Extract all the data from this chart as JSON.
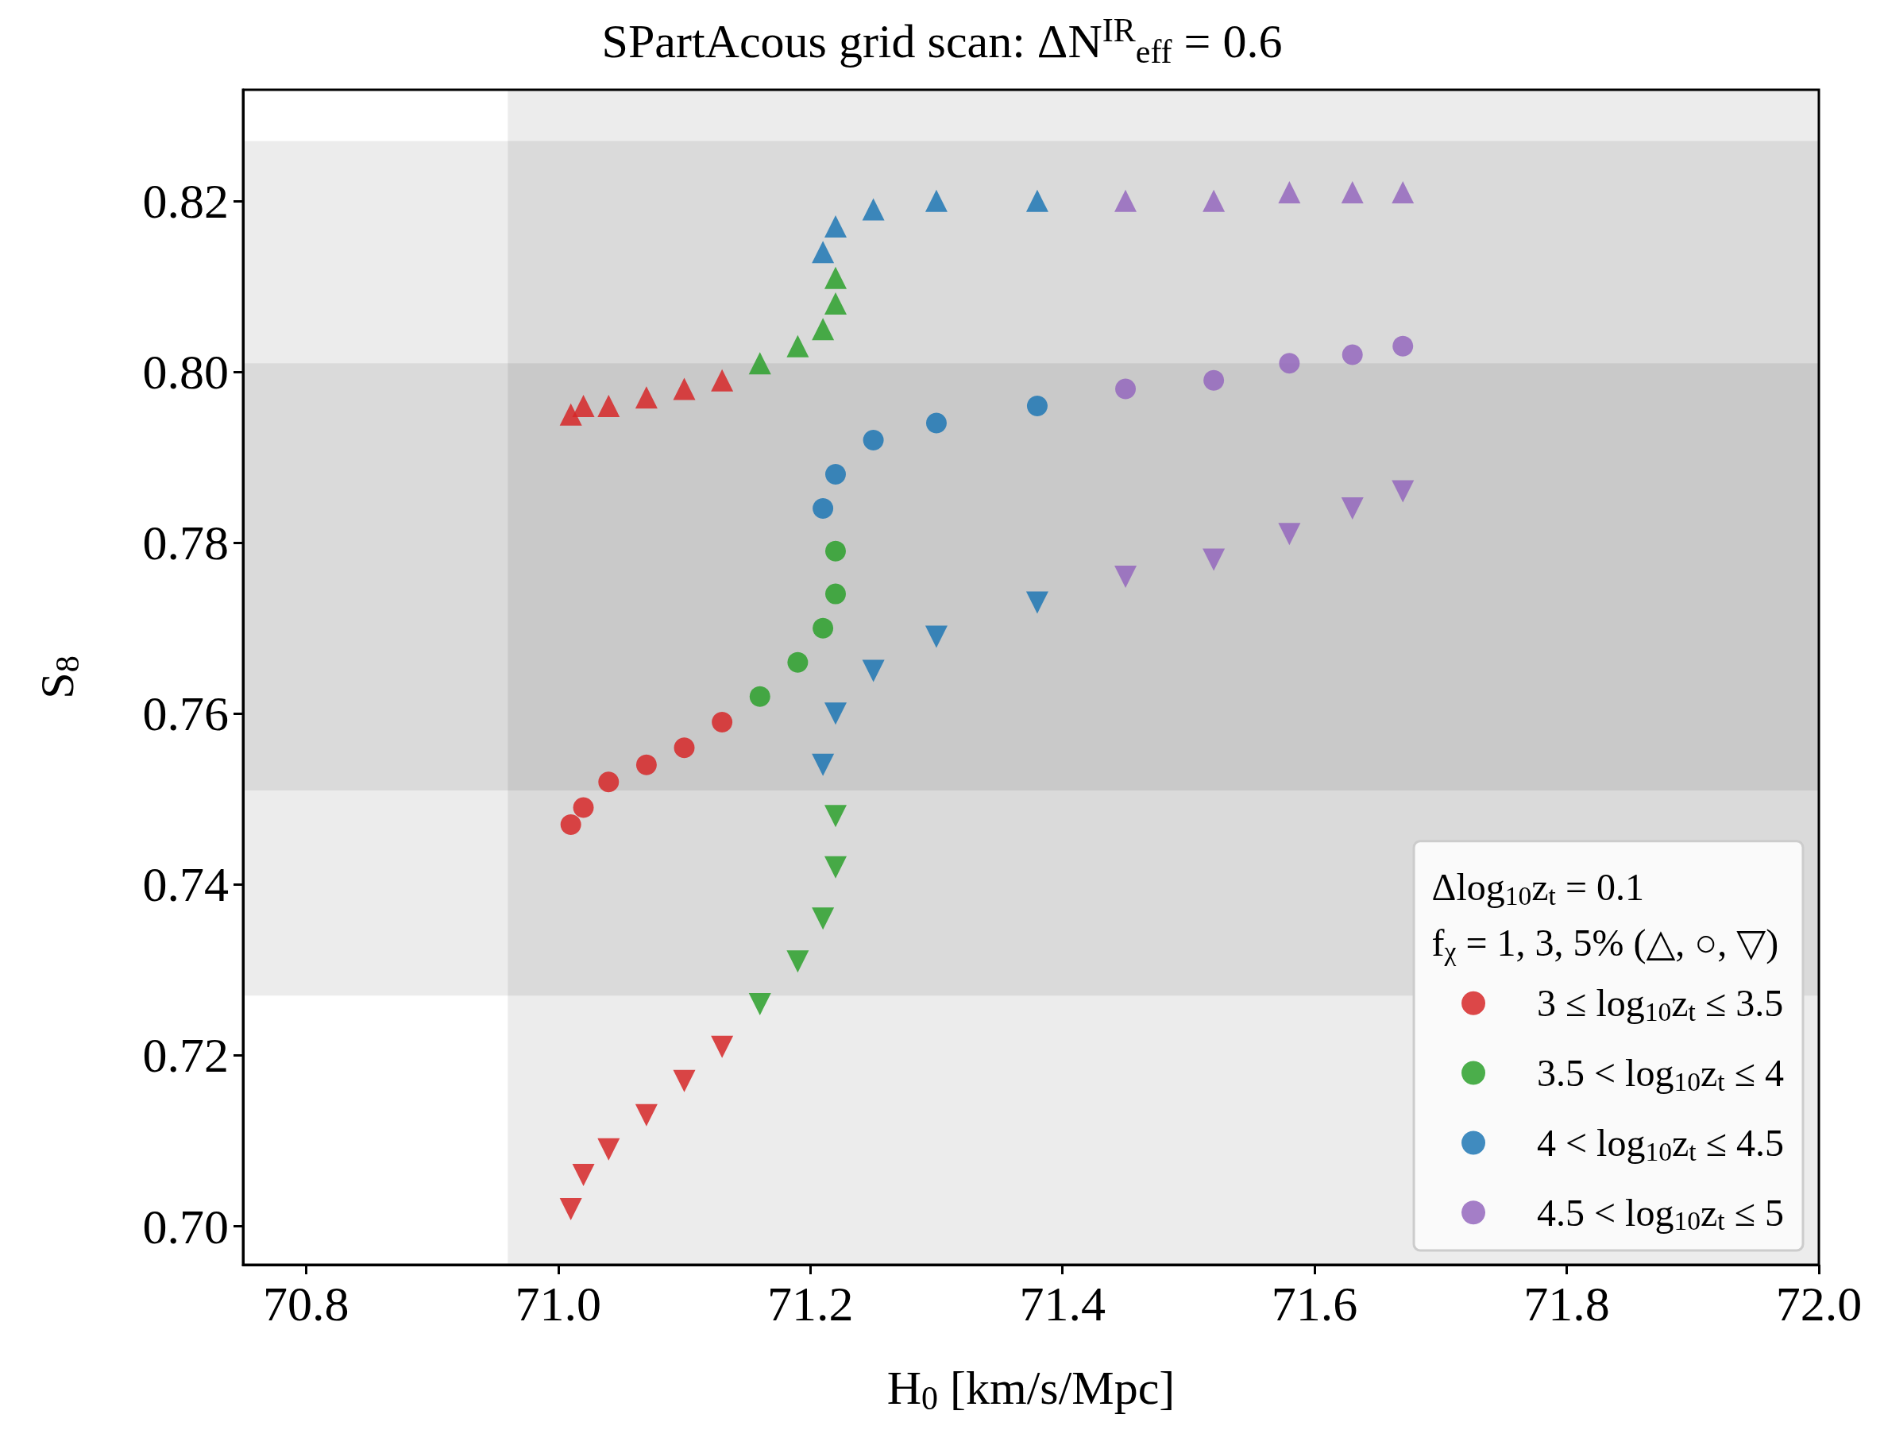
{
  "chart_data": {
    "type": "scatter",
    "title": "SPartAcous grid scan: ΔN$^{IR}$$_{eff}$ = 0.6",
    "xlabel": "H$_{0}$ [km/s/Mpc]",
    "ylabel": "S$_{8}$",
    "legend_title": "Δlog$_{10}$z$_{t}$ = 0.1\nf$_{χ}$ = 1, 3, 5% (△, ○, ▽)",
    "xlim": [
      70.75,
      72.0
    ],
    "ylim": [
      0.6955,
      0.833
    ],
    "xticks": [
      {
        "value": 70.8,
        "label": "70.8"
      },
      {
        "value": 71.0,
        "label": "71.0"
      },
      {
        "value": 71.2,
        "label": "71.2"
      },
      {
        "value": 71.4,
        "label": "71.4"
      },
      {
        "value": 71.6,
        "label": "71.6"
      },
      {
        "value": 71.8,
        "label": "71.8"
      },
      {
        "value": 72.0,
        "label": "72.0"
      }
    ],
    "yticks": [
      {
        "value": 0.7,
        "label": "0.70"
      },
      {
        "value": 0.72,
        "label": "0.72"
      },
      {
        "value": 0.74,
        "label": "0.74"
      },
      {
        "value": 0.76,
        "label": "0.76"
      },
      {
        "value": 0.78,
        "label": "0.78"
      },
      {
        "value": 0.8,
        "label": "0.80"
      },
      {
        "value": 0.82,
        "label": "0.82"
      }
    ],
    "grid": false,
    "legend": "bottom right",
    "bands": [
      {
        "axis": "x",
        "from": 70.96,
        "to": 72.0,
        "color": "#000000"
      },
      {
        "axis": "y",
        "from": 0.727,
        "to": 0.827,
        "color": "#000000"
      },
      {
        "axis": "y",
        "from": 0.751,
        "to": 0.801,
        "color": "#000000"
      }
    ],
    "series": [
      {
        "color": "#d62728",
        "marker": "triangle",
        "x": [
          71.01,
          71.02,
          71.04,
          71.07,
          71.1,
          71.13
        ],
        "values": [
          0.795,
          0.796,
          0.796,
          0.797,
          0.798,
          0.799
        ]
      },
      {
        "color": "#2ca02c",
        "marker": "triangle",
        "x": [
          71.16,
          71.19,
          71.21,
          71.22,
          71.22
        ],
        "values": [
          0.801,
          0.803,
          0.805,
          0.808,
          0.811
        ]
      },
      {
        "color": "#1f77b4",
        "marker": "triangle",
        "x": [
          71.21,
          71.22,
          71.25,
          71.3,
          71.38
        ],
        "values": [
          0.814,
          0.817,
          0.819,
          0.82,
          0.82
        ]
      },
      {
        "color": "#9467bd",
        "marker": "triangle",
        "x": [
          71.45,
          71.52,
          71.58,
          71.63,
          71.67
        ],
        "values": [
          0.82,
          0.82,
          0.821,
          0.821,
          0.821
        ]
      },
      {
        "name": "3 ≤ log$_{10}$z$_{t}$ ≤ 3.5",
        "color": "#d62728",
        "marker": "circle",
        "x": [
          71.01,
          71.02,
          71.04,
          71.07,
          71.1,
          71.13
        ],
        "values": [
          0.747,
          0.749,
          0.752,
          0.754,
          0.756,
          0.759
        ]
      },
      {
        "name": "3.5 < log$_{10}$z$_{t}$ ≤ 4",
        "color": "#2ca02c",
        "marker": "circle",
        "x": [
          71.16,
          71.19,
          71.21,
          71.22,
          71.22
        ],
        "values": [
          0.762,
          0.766,
          0.77,
          0.774,
          0.779
        ]
      },
      {
        "name": "4 < log$_{10}$z$_{t}$ ≤ 4.5",
        "color": "#1f77b4",
        "marker": "circle",
        "x": [
          71.21,
          71.22,
          71.25,
          71.3,
          71.38
        ],
        "values": [
          0.784,
          0.788,
          0.792,
          0.794,
          0.796
        ]
      },
      {
        "name": "4.5 < log$_{10}$z$_{t}$ ≤ 5",
        "color": "#9467bd",
        "marker": "circle",
        "x": [
          71.45,
          71.52,
          71.58,
          71.63,
          71.67
        ],
        "values": [
          0.798,
          0.799,
          0.801,
          0.802,
          0.803
        ]
      },
      {
        "color": "#d62728",
        "marker": "triangle-down",
        "x": [
          71.01,
          71.02,
          71.04,
          71.07,
          71.1,
          71.13
        ],
        "values": [
          0.702,
          0.706,
          0.709,
          0.713,
          0.717,
          0.721
        ]
      },
      {
        "color": "#2ca02c",
        "marker": "triangle-down",
        "x": [
          71.16,
          71.19,
          71.21,
          71.22,
          71.22
        ],
        "values": [
          0.726,
          0.731,
          0.736,
          0.742,
          0.748
        ]
      },
      {
        "color": "#1f77b4",
        "marker": "triangle-down",
        "x": [
          71.21,
          71.22,
          71.25,
          71.3,
          71.38
        ],
        "values": [
          0.754,
          0.76,
          0.765,
          0.769,
          0.773
        ]
      },
      {
        "color": "#9467bd",
        "marker": "triangle-down",
        "x": [
          71.45,
          71.52,
          71.58,
          71.63,
          71.67
        ],
        "values": [
          0.776,
          0.778,
          0.781,
          0.784,
          0.786
        ]
      }
    ]
  }
}
